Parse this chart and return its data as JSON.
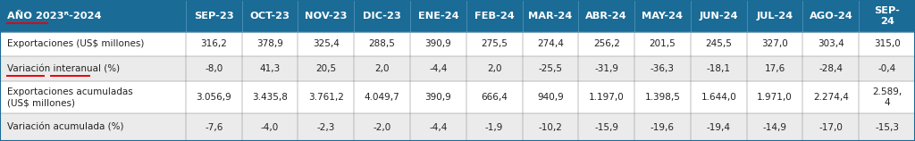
{
  "header_label": "AÑO 2023ᴿ-2024",
  "columns": [
    "SEP-23",
    "OCT-23",
    "NOV-23",
    "DIC-23",
    "ENE-24",
    "FEB-24",
    "MAR-24",
    "ABR-24",
    "MAY-24",
    "JUN-24",
    "JUL-24",
    "AGO-24",
    "SEP-\n24"
  ],
  "rows": [
    {
      "label": "Exportaciones (US$ millones)",
      "values": [
        "316,2",
        "378,9",
        "325,4",
        "288,5",
        "390,9",
        "275,5",
        "274,4",
        "256,2",
        "201,5",
        "245,5",
        "327,0",
        "303,4",
        "315,0"
      ]
    },
    {
      "label": "Variación interanual (%)",
      "values": [
        "-8,0",
        "41,3",
        "20,5",
        "2,0",
        "-4,4",
        "2,0",
        "-25,5",
        "-31,9",
        "-36,3",
        "-18,1",
        "17,6",
        "-28,4",
        "-0,4"
      ]
    },
    {
      "label": "Exportaciones acumuladas\n(US$ millones)",
      "values": [
        "3.056,9",
        "3.435,8",
        "3.761,2",
        "4.049,7",
        "390,9",
        "666,4",
        "940,9",
        "1.197,0",
        "1.398,5",
        "1.644,0",
        "1.971,0",
        "2.274,4",
        "2.589,\n4"
      ]
    },
    {
      "label": "Variación acumulada (%)",
      "values": [
        "-7,6",
        "-4,0",
        "-2,3",
        "-2,0",
        "-4,4",
        "-1,9",
        "-10,2",
        "-15,9",
        "-19,6",
        "-19,4",
        "-14,9",
        "-17,0",
        "-15,3"
      ]
    }
  ],
  "header_bg": "#1a6b96",
  "header_text": "#ffffff",
  "border_color": "#1a6b96",
  "cell_text_color": "#222222",
  "header_font_size": 8.2,
  "cell_font_size": 7.5,
  "label_font_size": 7.5,
  "red_underline_color": "#e8000d",
  "row_bg_colors": [
    "#ffffff",
    "#ebebeb",
    "#ffffff",
    "#ebebeb"
  ],
  "figsize": [
    10.24,
    1.58
  ],
  "dpi": 100
}
